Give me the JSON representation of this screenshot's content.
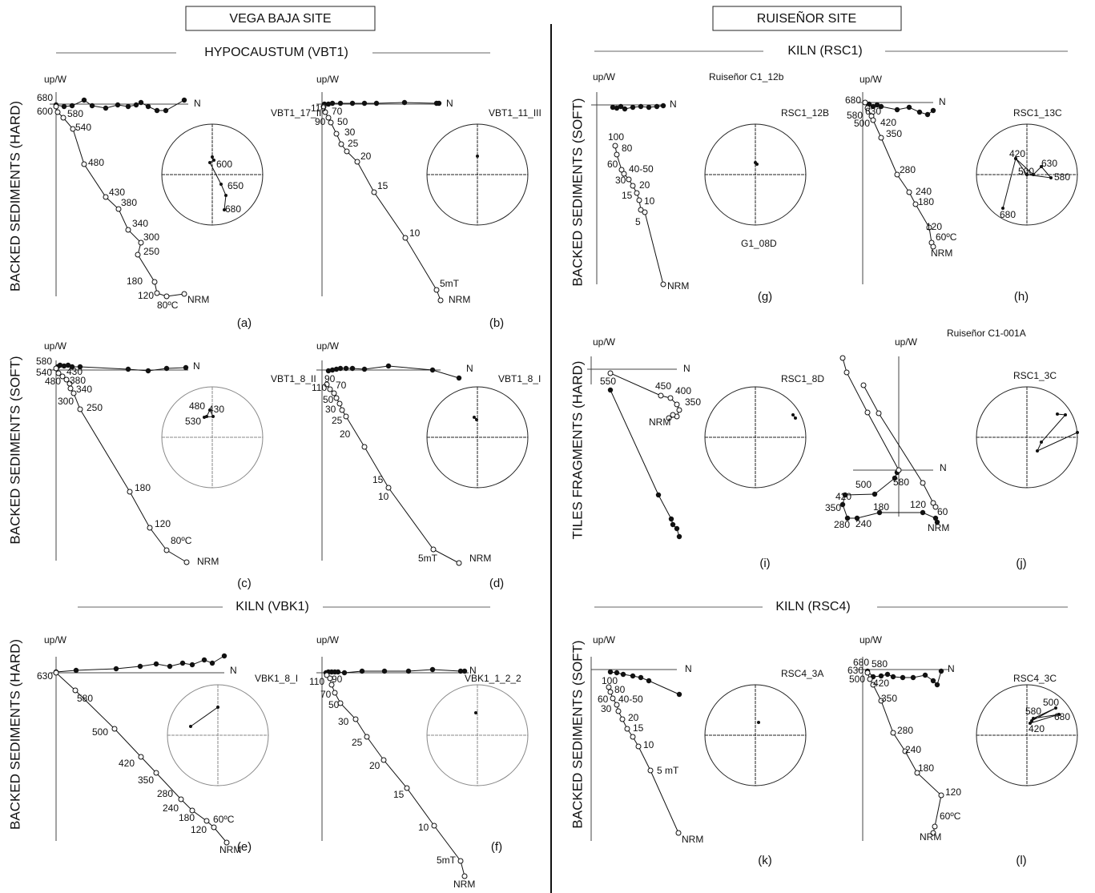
{
  "axis_up": "up/W",
  "axis_n": "N",
  "sites": [
    {
      "title": "VEGA BAJA SITE",
      "sections": [
        "HYPOCAUSTUM (VBT1)",
        "KILN (VBK1)"
      ],
      "rows": [
        "BACKED SEDIMENTS (HARD)",
        "BACKED SEDIMENTS (SOFT)",
        "BACKED SEDIMENTS (HARD)"
      ]
    },
    {
      "title": "RUISEÑOR SITE",
      "sections": [
        "KILN (RSC1)",
        "KILN (RSC4)"
      ],
      "rows": [
        "BACKED SEDIMENTS (SOFT)",
        "TILES FRAGMENTS (HARD)",
        "BACKED SEDIMENTS (SOFT)"
      ]
    }
  ],
  "panels": [
    {
      "label": "(a)",
      "sample": "VBT1_17_II",
      "steps": [
        "680",
        "600",
        "580",
        "540",
        "480",
        "430",
        "380",
        "340",
        "300",
        "250",
        "180",
        "120",
        "80ºC",
        "NRM"
      ],
      "stereo_steps": [
        "600",
        "650",
        "680"
      ]
    },
    {
      "label": "(b)",
      "sample": "VBT1_11_III",
      "steps": [
        "110",
        "70",
        "90",
        "50",
        "30",
        "25",
        "20",
        "15",
        "10",
        "5mT",
        "NRM"
      ]
    },
    {
      "label": "(c)",
      "sample": "VBT1_8_II",
      "steps": [
        "580",
        "540",
        "430",
        "480",
        "380",
        "340",
        "300",
        "250",
        "180",
        "120",
        "80ºC",
        "NRM"
      ],
      "stereo_steps": [
        "480",
        "430",
        "530"
      ]
    },
    {
      "label": "(d)",
      "sample": "VBT1_8_I",
      "steps": [
        "90",
        "110",
        "70",
        "50",
        "30",
        "25",
        "20",
        "15",
        "10",
        "5mT",
        "NRM"
      ]
    },
    {
      "label": "(e)",
      "sample": "VBK1_8_I",
      "steps": [
        "630",
        "580",
        "500",
        "420",
        "350",
        "280",
        "240",
        "180",
        "60ºC",
        "120",
        "NRM"
      ]
    },
    {
      "label": "(f)",
      "sample": "VBK1_1_2_2",
      "steps": [
        "110",
        "90",
        "70",
        "50",
        "30",
        "25",
        "20",
        "15",
        "10",
        "5mT",
        "NRM"
      ]
    },
    {
      "label": "(g)",
      "sample": "RSC1_12B",
      "notes": [
        "Ruiseñor C1_12b",
        "G1_08D"
      ],
      "steps": [
        "100",
        "80",
        "60",
        "40-50",
        "30",
        "20",
        "15",
        "10",
        "5",
        "NRM"
      ]
    },
    {
      "label": "(h)",
      "sample": "RSC1_13C",
      "steps": [
        "680",
        "630",
        "580",
        "500",
        "420",
        "350",
        "280",
        "240",
        "180",
        "120",
        "60ºC",
        "NRM"
      ],
      "stereo_steps": [
        "420",
        "630",
        "500",
        "580",
        "680"
      ]
    },
    {
      "label": "(i)",
      "sample": "RSC1_8D",
      "steps": [
        "550",
        "450",
        "400",
        "350",
        "NRM"
      ]
    },
    {
      "label": "(j)",
      "sample": "RSC1_3C",
      "notes": [
        "Ruiseñor C1-001A"
      ],
      "steps": [
        "580",
        "500",
        "420",
        "350",
        "180",
        "120",
        "60",
        "280",
        "240",
        "NRM"
      ]
    },
    {
      "label": "(k)",
      "sample": "RSC4_3A",
      "steps": [
        "100",
        "80",
        "60",
        "40-50",
        "30",
        "20",
        "15",
        "10",
        "5 mT",
        "NRM"
      ]
    },
    {
      "label": "(l)",
      "sample": "RSC4_3C",
      "steps": [
        "680",
        "580",
        "630",
        "500",
        "420",
        "350",
        "280",
        "240",
        "180",
        "120",
        "60ºC",
        "NRM"
      ],
      "stereo_steps": [
        "500",
        "580",
        "680",
        "420"
      ]
    }
  ]
}
